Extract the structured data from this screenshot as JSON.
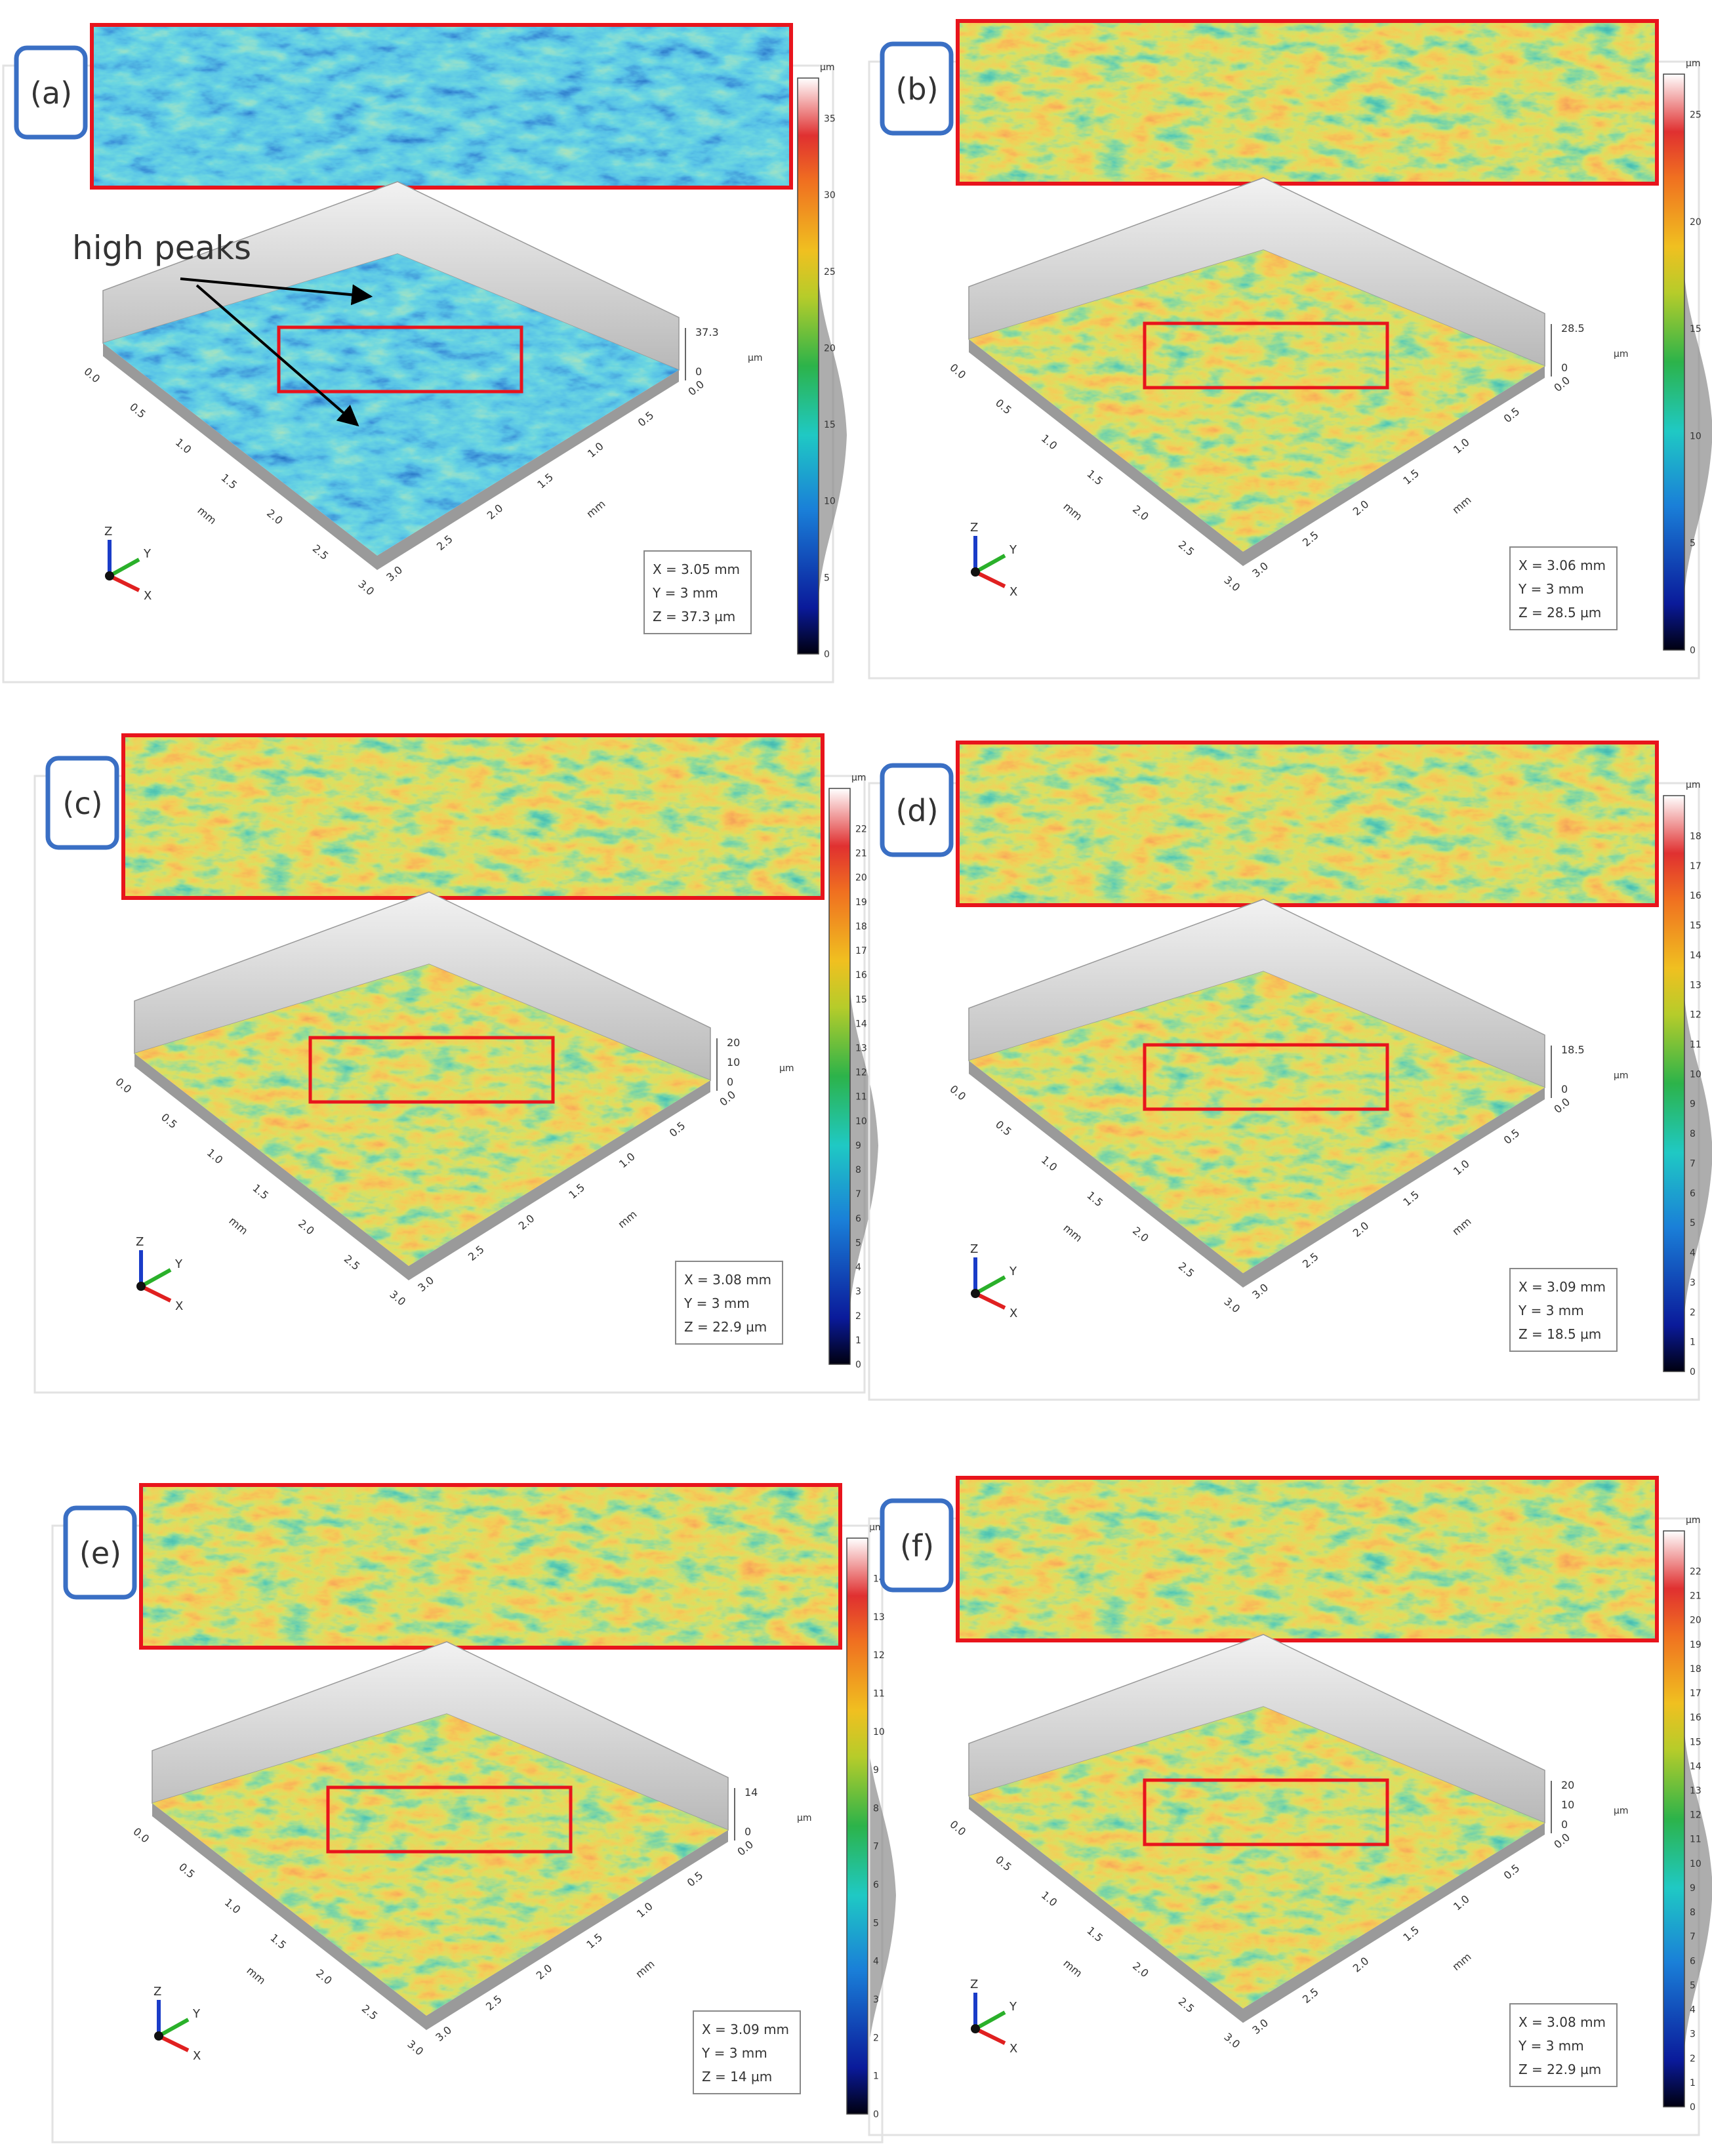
{
  "panels": [
    {
      "label": "(a)",
      "annotation": "high peaks",
      "colorbar_unit": "µm",
      "colorbar_ticks": [
        "0",
        "5",
        "10",
        "15",
        "20",
        "25",
        "30",
        "35"
      ],
      "z_labels": [
        "37.3",
        "0"
      ],
      "z_unit": "µm",
      "info": [
        "X = 3.05 mm",
        "Y = 3 mm",
        "Z = 37.3 µm"
      ]
    },
    {
      "label": "(b)",
      "colorbar_unit": "µm",
      "colorbar_ticks": [
        "0",
        "5",
        "10",
        "15",
        "20",
        "25"
      ],
      "z_labels": [
        "28.5",
        "0"
      ],
      "z_unit": "µm",
      "info": [
        "X = 3.06 mm",
        "Y = 3 mm",
        "Z = 28.5 µm"
      ]
    },
    {
      "label": "(c)",
      "colorbar_unit": "µm",
      "colorbar_ticks": [
        "0",
        "1",
        "2",
        "3",
        "4",
        "5",
        "6",
        "7",
        "8",
        "9",
        "10",
        "11",
        "12",
        "13",
        "14",
        "15",
        "16",
        "17",
        "18",
        "19",
        "20",
        "21",
        "22"
      ],
      "z_labels": [
        "20",
        "10",
        "0"
      ],
      "z_unit": "µm",
      "info": [
        "X = 3.08 mm",
        "Y = 3 mm",
        "Z = 22.9 µm"
      ]
    },
    {
      "label": "(d)",
      "colorbar_unit": "µm",
      "colorbar_ticks": [
        "0",
        "1",
        "2",
        "3",
        "4",
        "5",
        "6",
        "7",
        "8",
        "9",
        "10",
        "11",
        "12",
        "13",
        "14",
        "15",
        "16",
        "17",
        "18"
      ],
      "z_labels": [
        "18.5",
        "0"
      ],
      "z_unit": "µm",
      "info": [
        "X = 3.09 mm",
        "Y = 3 mm",
        "Z = 18.5 µm"
      ]
    },
    {
      "label": "(e)",
      "colorbar_unit": "µm",
      "colorbar_ticks": [
        "0",
        "1",
        "2",
        "3",
        "4",
        "5",
        "6",
        "7",
        "8",
        "9",
        "10",
        "11",
        "12",
        "13",
        "14"
      ],
      "z_labels": [
        "14",
        "0"
      ],
      "z_unit": "µm",
      "info": [
        "X = 3.09 mm",
        "Y = 3 mm",
        "Z = 14 µm"
      ]
    },
    {
      "label": "(f)",
      "colorbar_unit": "µm",
      "colorbar_ticks": [
        "0",
        "1",
        "2",
        "3",
        "4",
        "5",
        "6",
        "7",
        "8",
        "9",
        "10",
        "11",
        "12",
        "13",
        "14",
        "15",
        "16",
        "17",
        "18",
        "19",
        "20",
        "21",
        "22"
      ],
      "z_labels": [
        "20",
        "10",
        "0"
      ],
      "z_unit": "µm",
      "info": [
        "X = 3.08 mm",
        "Y = 3 mm",
        "Z = 22.9 µm"
      ]
    }
  ],
  "axis_ticks": [
    "0.0",
    "0.5",
    "1.0",
    "1.5",
    "2.0",
    "2.5",
    "3.0"
  ],
  "axis_unit": "mm",
  "triad": [
    "X",
    "Y",
    "Z"
  ]
}
